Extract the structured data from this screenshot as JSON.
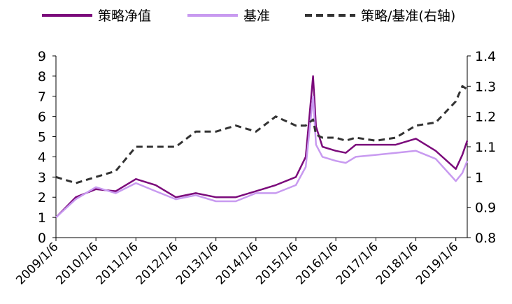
{
  "chart_data": {
    "type": "line",
    "legend_position": "top",
    "grid": false,
    "x": [
      "2009/1/6",
      "2009/7/6",
      "2010/1/6",
      "2010/7/6",
      "2011/1/6",
      "2011/7/6",
      "2012/1/6",
      "2012/7/6",
      "2013/1/6",
      "2013/7/6",
      "2014/1/6",
      "2014/7/6",
      "2015/1/6",
      "2015/4/6",
      "2015/6/12",
      "2015/7/9",
      "2015/9/6",
      "2016/1/6",
      "2016/4/6",
      "2016/7/6",
      "2017/1/6",
      "2017/7/6",
      "2018/1/6",
      "2018/7/6",
      "2019/1/6",
      "2019/3/6",
      "2019/4/20"
    ],
    "xtick_labels": [
      "2009/1/6",
      "2010/1/6",
      "2011/1/6",
      "2012/1/6",
      "2013/1/6",
      "2014/1/6",
      "2015/1/6",
      "2016/1/6",
      "2017/1/6",
      "2018/1/6",
      "2019/1/6"
    ],
    "y_left": {
      "ylim": [
        0,
        9
      ],
      "ticks": [
        "0",
        "1",
        "2",
        "3",
        "4",
        "5",
        "6",
        "7",
        "8",
        "9"
      ]
    },
    "y_right": {
      "ylim": [
        0.8,
        1.4
      ],
      "ticks": [
        "0.8",
        "0.9",
        "1",
        "1.1",
        "1.2",
        "1.3",
        "1.4"
      ]
    },
    "series": [
      {
        "name": "策略净值",
        "axis": "left",
        "color": "#7b0a7b",
        "style": "solid",
        "values": [
          1.0,
          2.0,
          2.4,
          2.3,
          2.9,
          2.6,
          2.0,
          2.2,
          2.0,
          2.0,
          2.3,
          2.6,
          3.0,
          4.0,
          8.0,
          5.5,
          4.5,
          4.3,
          4.2,
          4.6,
          4.6,
          4.6,
          4.9,
          4.3,
          3.4,
          4.1,
          4.8
        ]
      },
      {
        "name": "基准",
        "axis": "left",
        "color": "#c89af0",
        "style": "solid",
        "values": [
          1.0,
          1.9,
          2.5,
          2.2,
          2.7,
          2.3,
          1.9,
          2.1,
          1.8,
          1.8,
          2.2,
          2.2,
          2.6,
          3.5,
          7.0,
          4.6,
          4.0,
          3.8,
          3.7,
          4.0,
          4.1,
          4.2,
          4.3,
          3.9,
          2.8,
          3.2,
          3.8
        ]
      },
      {
        "name": "策略/基准(右轴)",
        "axis": "right",
        "color": "#333333",
        "style": "dashed",
        "values": [
          1.0,
          0.98,
          1.0,
          1.02,
          1.1,
          1.1,
          1.1,
          1.15,
          1.15,
          1.17,
          1.15,
          1.2,
          1.17,
          1.17,
          1.19,
          1.14,
          1.13,
          1.13,
          1.12,
          1.13,
          1.12,
          1.13,
          1.17,
          1.18,
          1.25,
          1.3,
          1.29
        ]
      }
    ]
  }
}
